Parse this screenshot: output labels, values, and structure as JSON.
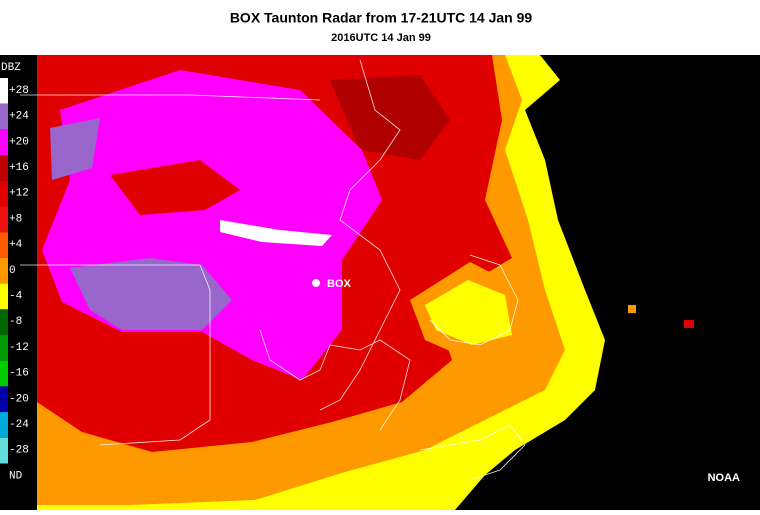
{
  "header": {
    "title": "BOX Taunton Radar from 17-21UTC 14 Jan 99",
    "subtitle": "2016UTC 14 Jan 99"
  },
  "legend": {
    "title": "DBZ",
    "items": [
      {
        "label": "+28",
        "color": "#ffffff"
      },
      {
        "label": "+24",
        "color": "#9966cc"
      },
      {
        "label": "+20",
        "color": "#ff00ff"
      },
      {
        "label": "+16",
        "color": "#c00000"
      },
      {
        "label": "+12",
        "color": "#e00000"
      },
      {
        "label": "+8",
        "color": "#ee1010"
      },
      {
        "label": "+4",
        "color": "#ff5a00"
      },
      {
        "label": "0",
        "color": "#ff9900"
      },
      {
        "label": "-4",
        "color": "#ffff00"
      },
      {
        "label": "-8",
        "color": "#006600"
      },
      {
        "label": "-12",
        "color": "#009900"
      },
      {
        "label": "-16",
        "color": "#00cc00"
      },
      {
        "label": "-20",
        "color": "#0000aa"
      },
      {
        "label": "-24",
        "color": "#00aadd"
      },
      {
        "label": "-28",
        "color": "#66dddd"
      },
      {
        "label": "ND",
        "color": "#000000"
      }
    ]
  },
  "map": {
    "station": "BOX",
    "credit": "NOAA"
  }
}
